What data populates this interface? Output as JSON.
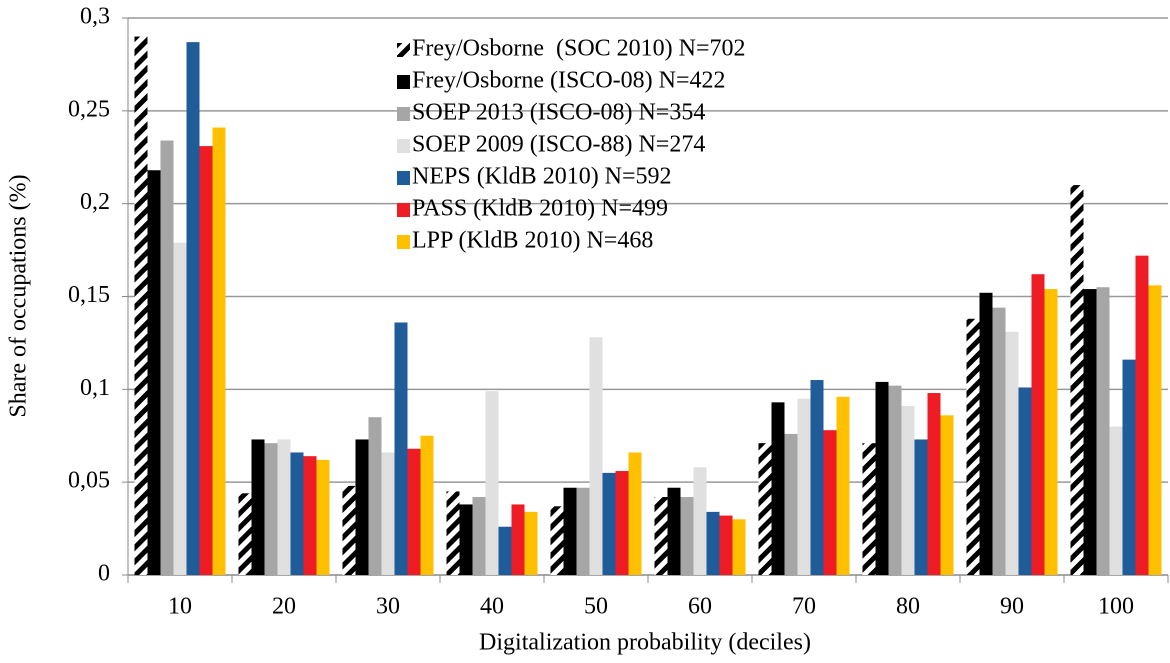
{
  "chart_data": {
    "type": "bar",
    "x_label": "Digitalization probability (deciles)",
    "y_label": "Share of occupations (%)",
    "categories": [
      "10",
      "20",
      "30",
      "40",
      "50",
      "60",
      "70",
      "80",
      "90",
      "100"
    ],
    "series": [
      {
        "name": "Frey/Osborne  (SOC 2010) N=702",
        "color": "#000000",
        "pattern": "hatch",
        "values": [
          0.29,
          0.044,
          0.048,
          0.045,
          0.037,
          0.042,
          0.071,
          0.071,
          0.138,
          0.21
        ]
      },
      {
        "name": "Frey/Osborne (ISCO-08) N=422",
        "color": "#000000",
        "values": [
          0.218,
          0.073,
          0.073,
          0.038,
          0.047,
          0.047,
          0.093,
          0.104,
          0.152,
          0.154
        ]
      },
      {
        "name": "SOEP 2013 (ISCO-08) N=354",
        "color": "#a6a6a6",
        "values": [
          0.234,
          0.071,
          0.085,
          0.042,
          0.047,
          0.042,
          0.076,
          0.102,
          0.144,
          0.155
        ]
      },
      {
        "name": "SOEP 2009 (ISCO-88) N=274",
        "color": "#e0e0e0",
        "values": [
          0.179,
          0.073,
          0.066,
          0.099,
          0.128,
          0.058,
          0.095,
          0.091,
          0.131,
          0.08
        ]
      },
      {
        "name": "NEPS (KldB 2010) N=592",
        "color": "#1f5c99",
        "values": [
          0.287,
          0.066,
          0.136,
          0.026,
          0.055,
          0.034,
          0.105,
          0.073,
          0.101,
          0.116
        ]
      },
      {
        "name": "PASS (KldB 2010) N=499",
        "color": "#ee1c25",
        "values": [
          0.231,
          0.064,
          0.068,
          0.038,
          0.056,
          0.032,
          0.078,
          0.098,
          0.162,
          0.172
        ]
      },
      {
        "name": "LPP (KldB 2010) N=468",
        "color": "#ffc000",
        "values": [
          0.241,
          0.062,
          0.075,
          0.034,
          0.066,
          0.03,
          0.096,
          0.086,
          0.154,
          0.156
        ]
      }
    ],
    "ylim": [
      0,
      0.3
    ],
    "yticks": [
      0,
      {
        "value": 0.05,
        "label": "0,05"
      },
      {
        "value": 0.1,
        "label": "0,1"
      },
      {
        "value": 0.15,
        "label": "0,15"
      },
      {
        "value": 0.2,
        "label": "0,2"
      },
      {
        "value": 0.25,
        "label": "0,25"
      },
      {
        "value": 0.3,
        "label": "0,3"
      }
    ],
    "grid": true,
    "legend": "upper center"
  }
}
